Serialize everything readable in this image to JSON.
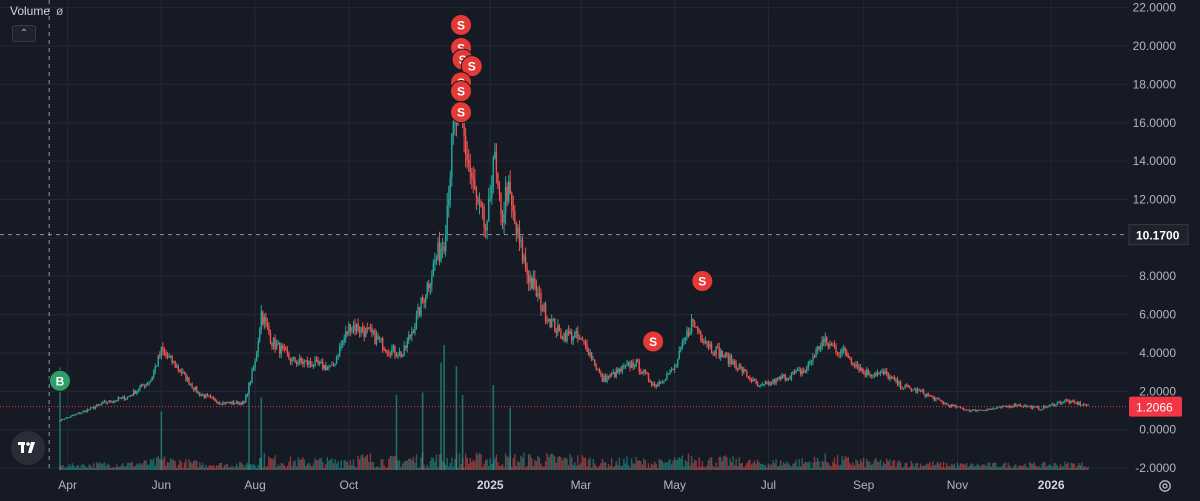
{
  "legend": {
    "label": "Volume",
    "value": "ø"
  },
  "collapse_button": {
    "symbol": "⌃"
  },
  "crosshair_price_label": "10.1700",
  "last_price_label": "1.2066",
  "colors": {
    "background": "#161a25",
    "grid": "#232834",
    "up": "#26a69a",
    "down": "#ef5350",
    "buy_marker": "#2e9e6b",
    "sell_marker": "#e53935",
    "last_price": "#f23645",
    "crosshair_label_bg": "#1e222d"
  },
  "chart_data": {
    "type": "candlestick",
    "x_tick_labels": [
      "Apr",
      "Jun",
      "Aug",
      "Oct",
      "2025",
      "Mar",
      "May",
      "Jul",
      "Sep",
      "Nov",
      "2026"
    ],
    "x_tick_dates": [
      "2024-04-01",
      "2024-06-01",
      "2024-08-01",
      "2024-10-01",
      "2025-01-01",
      "2025-03-01",
      "2025-05-01",
      "2025-07-01",
      "2025-09-01",
      "2025-11-01",
      "2026-01-01"
    ],
    "x_range": [
      "2024-02-17",
      "2026-02-20"
    ],
    "y_tick_labels": [
      "22.0000",
      "20.0000",
      "18.0000",
      "16.0000",
      "14.0000",
      "12.0000",
      "10.0000",
      "8.0000",
      "6.0000",
      "4.0000",
      "2.0000",
      "0.0000",
      "-2.0000"
    ],
    "y_ticks": [
      22,
      20,
      18,
      16,
      14,
      12,
      10,
      8,
      6,
      4,
      2,
      0,
      -2
    ],
    "ylim": [
      -2.1,
      22.4
    ],
    "crosshair": {
      "date": "2024-03-20",
      "price": 10.17
    },
    "last_price": 1.2066,
    "price_path": [
      [
        "2024-03-27",
        0.5
      ],
      [
        "2024-04-10",
        0.9
      ],
      [
        "2024-04-25",
        1.4
      ],
      [
        "2024-05-10",
        1.7
      ],
      [
        "2024-05-25",
        2.6
      ],
      [
        "2024-06-01",
        4.1
      ],
      [
        "2024-06-12",
        3.2
      ],
      [
        "2024-06-25",
        1.9
      ],
      [
        "2024-07-10",
        1.4
      ],
      [
        "2024-07-25",
        1.4
      ],
      [
        "2024-08-01",
        3.5
      ],
      [
        "2024-08-05",
        6.1
      ],
      [
        "2024-08-12",
        4.6
      ],
      [
        "2024-08-25",
        3.6
      ],
      [
        "2024-09-10",
        3.4
      ],
      [
        "2024-09-20",
        3.2
      ],
      [
        "2024-09-25",
        4.2
      ],
      [
        "2024-10-02",
        5.5
      ],
      [
        "2024-10-15",
        5.0
      ],
      [
        "2024-10-25",
        4.3
      ],
      [
        "2024-11-05",
        3.9
      ],
      [
        "2024-11-15",
        6.0
      ],
      [
        "2024-11-25",
        8.5
      ],
      [
        "2024-12-02",
        10.0
      ],
      [
        "2024-12-08",
        15.5
      ],
      [
        "2024-12-12",
        16.5
      ],
      [
        "2024-12-18",
        13.8
      ],
      [
        "2024-12-24",
        11.5
      ],
      [
        "2024-12-30",
        10.2
      ],
      [
        "2025-01-03",
        14.5
      ],
      [
        "2025-01-08",
        10.8
      ],
      [
        "2025-01-12",
        12.6
      ],
      [
        "2025-01-18",
        10.3
      ],
      [
        "2025-01-25",
        8.2
      ],
      [
        "2025-02-05",
        6.2
      ],
      [
        "2025-02-15",
        5.0
      ],
      [
        "2025-02-25",
        4.9
      ],
      [
        "2025-03-05",
        4.3
      ],
      [
        "2025-03-15",
        2.6
      ],
      [
        "2025-03-25",
        3.0
      ],
      [
        "2025-04-05",
        3.5
      ],
      [
        "2025-04-18",
        2.3
      ],
      [
        "2025-05-01",
        3.2
      ],
      [
        "2025-05-12",
        5.6
      ],
      [
        "2025-05-25",
        4.3
      ],
      [
        "2025-06-10",
        3.4
      ],
      [
        "2025-06-25",
        2.2
      ],
      [
        "2025-07-10",
        2.7
      ],
      [
        "2025-07-25",
        3.1
      ],
      [
        "2025-08-05",
        4.6
      ],
      [
        "2025-08-20",
        4.0
      ],
      [
        "2025-09-01",
        3.0
      ],
      [
        "2025-09-15",
        2.9
      ],
      [
        "2025-09-25",
        2.3
      ],
      [
        "2025-10-10",
        1.9
      ],
      [
        "2025-10-25",
        1.3
      ],
      [
        "2025-11-10",
        1.0
      ],
      [
        "2025-11-25",
        1.1
      ],
      [
        "2025-12-10",
        1.3
      ],
      [
        "2025-12-25",
        1.1
      ],
      [
        "2026-01-10",
        1.5
      ],
      [
        "2026-01-25",
        1.25
      ]
    ],
    "markers": [
      {
        "label": "B",
        "date": "2024-03-27",
        "price": 2.55,
        "side": "buy"
      },
      {
        "label": "S",
        "date": "2024-12-13",
        "price": 21.1,
        "side": "sell"
      },
      {
        "label": "S",
        "date": "2024-12-13",
        "price": 19.9,
        "side": "sell"
      },
      {
        "label": "S",
        "date": "2024-12-14",
        "price": 19.3,
        "side": "sell"
      },
      {
        "label": "S",
        "date": "2024-12-20",
        "price": 18.95,
        "side": "sell"
      },
      {
        "label": "S",
        "date": "2024-12-13",
        "price": 18.1,
        "side": "sell"
      },
      {
        "label": "S",
        "date": "2024-12-13",
        "price": 17.65,
        "side": "sell"
      },
      {
        "label": "S",
        "date": "2024-12-13",
        "price": 16.55,
        "side": "sell"
      },
      {
        "label": "S",
        "date": "2025-04-17",
        "price": 4.6,
        "side": "sell"
      },
      {
        "label": "S",
        "date": "2025-05-19",
        "price": 7.75,
        "side": "sell"
      }
    ],
    "volume_spikes": [
      [
        "2024-03-27",
        0.82
      ],
      [
        "2024-06-01",
        0.47
      ],
      [
        "2024-07-28",
        0.7
      ],
      [
        "2024-08-05",
        0.58
      ],
      [
        "2024-11-01",
        0.6
      ],
      [
        "2024-11-18",
        0.62
      ],
      [
        "2024-11-30",
        0.86
      ],
      [
        "2024-12-02",
        1.0
      ],
      [
        "2024-12-10",
        0.83
      ],
      [
        "2024-12-14",
        0.6
      ],
      [
        "2025-01-03",
        0.68
      ],
      [
        "2025-01-14",
        0.5
      ]
    ]
  }
}
